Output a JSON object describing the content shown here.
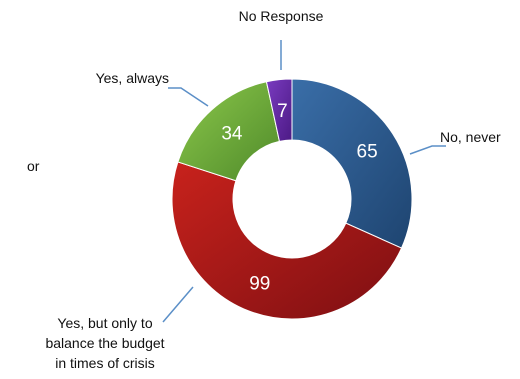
{
  "chart_data": {
    "type": "pie",
    "donut": true,
    "title": "",
    "categories": [
      "No, never",
      "Yes, but only to balance the budget in times of crisis",
      "Yes, always",
      "No Response"
    ],
    "values": [
      65,
      99,
      34,
      7
    ],
    "colors": [
      "#2a5788",
      "#a4161b",
      "#6fa83a",
      "#6226a0"
    ],
    "legend": "none"
  },
  "labels": {
    "no_response": "No Response",
    "yes_always": "Yes, always",
    "no_never": "No, never",
    "yes_but_line1": "Yes, but only to",
    "yes_but_line2": "balance the budget",
    "yes_but_line3": "in times of crisis",
    "stray_text": "or"
  }
}
